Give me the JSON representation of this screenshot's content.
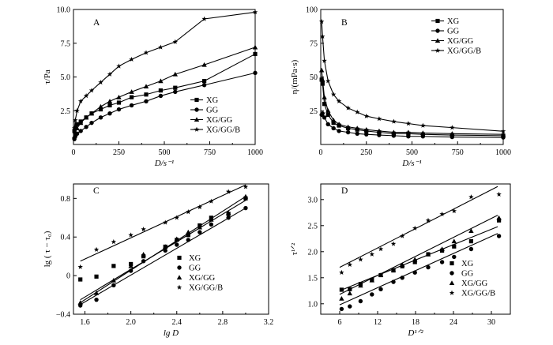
{
  "chart_data": [
    {
      "type": "line",
      "title": "A",
      "xlabel": "D/s⁻¹",
      "ylabel": "τ/Pa",
      "xlim": [
        0,
        1000
      ],
      "ylim": [
        0,
        10
      ],
      "xticks": [
        0,
        250,
        500,
        750,
        1000
      ],
      "yticks": [
        2.5,
        5.0,
        7.5,
        10.0
      ],
      "ytick_labels": [
        "2.5",
        "5.0",
        "7.5",
        "10.0"
      ],
      "legend_position": "bottom-right",
      "series": [
        {
          "name": "XG",
          "marker": "square",
          "x": [
            5,
            10,
            20,
            40,
            70,
            100,
            150,
            200,
            250,
            320,
            400,
            480,
            560,
            720,
            1000
          ],
          "y": [
            1.0,
            1.2,
            1.5,
            1.7,
            2.0,
            2.3,
            2.6,
            2.9,
            3.1,
            3.5,
            3.7,
            4.0,
            4.2,
            4.7,
            6.7
          ]
        },
        {
          "name": "GG",
          "marker": "circle",
          "x": [
            5,
            10,
            20,
            40,
            70,
            100,
            150,
            200,
            250,
            320,
            400,
            480,
            560,
            720,
            1000
          ],
          "y": [
            0.4,
            0.6,
            0.8,
            1.0,
            1.3,
            1.6,
            2.0,
            2.3,
            2.6,
            2.9,
            3.2,
            3.6,
            3.9,
            4.4,
            5.3
          ]
        },
        {
          "name": "XG/GG",
          "marker": "triangle",
          "x": [
            5,
            10,
            20,
            40,
            70,
            100,
            150,
            200,
            250,
            320,
            400,
            480,
            560,
            720,
            1000
          ],
          "y": [
            0.6,
            0.9,
            1.2,
            1.6,
            2.0,
            2.3,
            2.8,
            3.2,
            3.5,
            3.9,
            4.3,
            4.7,
            5.2,
            5.9,
            7.2
          ]
        },
        {
          "name": "XG/GG/B",
          "marker": "star",
          "x": [
            5,
            10,
            20,
            40,
            70,
            100,
            150,
            200,
            250,
            320,
            400,
            480,
            560,
            720,
            1000
          ],
          "y": [
            1.2,
            1.8,
            2.5,
            3.2,
            3.6,
            4.0,
            4.6,
            5.2,
            5.8,
            6.3,
            6.8,
            7.2,
            7.6,
            9.3,
            9.8
          ]
        }
      ]
    },
    {
      "type": "line",
      "title": "B",
      "xlabel": "D/s⁻¹",
      "ylabel": "η/(mPa·s)",
      "xlim": [
        0,
        1000
      ],
      "ylim": [
        0,
        100
      ],
      "xticks": [
        0,
        250,
        500,
        750,
        1000
      ],
      "yticks": [
        25,
        50,
        75,
        100
      ],
      "ytick_labels": [
        "25",
        "50",
        "75",
        "100"
      ],
      "legend_position": "top-right",
      "series": [
        {
          "name": "XG",
          "marker": "square",
          "x": [
            5,
            10,
            20,
            40,
            70,
            100,
            150,
            200,
            250,
            320,
            400,
            480,
            560,
            720,
            1000
          ],
          "y": [
            48,
            45,
            30,
            22,
            16,
            14,
            12,
            11,
            10,
            9,
            8,
            8,
            7.5,
            7,
            6.5
          ]
        },
        {
          "name": "GG",
          "marker": "circle",
          "x": [
            5,
            10,
            20,
            40,
            70,
            100,
            150,
            200,
            250,
            320,
            400,
            480,
            560,
            720,
            1000
          ],
          "y": [
            22,
            23,
            20,
            15,
            12,
            10,
            9,
            8,
            7.5,
            7,
            6.5,
            6,
            6,
            5.5,
            5.2
          ]
        },
        {
          "name": "XG/GG",
          "marker": "triangle",
          "x": [
            5,
            10,
            20,
            40,
            70,
            100,
            150,
            200,
            250,
            320,
            400,
            480,
            560,
            720,
            1000
          ],
          "y": [
            55,
            48,
            35,
            25,
            18,
            15,
            13,
            12,
            11,
            10,
            9,
            9,
            8.5,
            8,
            7.5
          ]
        },
        {
          "name": "XG/GG/B",
          "marker": "star",
          "x": [
            5,
            10,
            20,
            40,
            70,
            100,
            150,
            200,
            250,
            320,
            400,
            480,
            560,
            720,
            1000
          ],
          "y": [
            91,
            80,
            62,
            47,
            37,
            32,
            27,
            24,
            21,
            19,
            17,
            15.5,
            14,
            12.5,
            9.8
          ]
        }
      ]
    },
    {
      "type": "scatter",
      "title": "C",
      "xlabel": "lg D",
      "ylabel": "lg ( τ − τ₀)",
      "xlim": [
        1.5,
        3.2
      ],
      "ylim": [
        -0.4,
        0.95
      ],
      "xticks": [
        1.6,
        2.0,
        2.4,
        2.8,
        3.2
      ],
      "xtick_labels": [
        "1.6",
        "2.0",
        "2.4",
        "2.8",
        "3.2"
      ],
      "yticks": [
        -0.4,
        0.0,
        0.4,
        0.8
      ],
      "ytick_labels": [
        "−0.4",
        "0",
        "0.4",
        "0.8"
      ],
      "legend_position": "bottom-right",
      "series": [
        {
          "name": "XG",
          "marker": "square",
          "x": [
            1.56,
            1.7,
            1.85,
            2.0,
            2.11,
            2.3,
            2.4,
            2.5,
            2.6,
            2.7,
            2.85,
            3.0
          ],
          "y": [
            -0.04,
            -0.01,
            0.1,
            0.12,
            0.2,
            0.3,
            0.37,
            0.42,
            0.52,
            0.6,
            0.64,
            0.8
          ],
          "fit": [
            [
              1.56,
              -0.25
            ],
            [
              3.0,
              0.78
            ]
          ]
        },
        {
          "name": "GG",
          "marker": "circle",
          "x": [
            1.56,
            1.7,
            1.85,
            2.0,
            2.11,
            2.3,
            2.4,
            2.5,
            2.6,
            2.7,
            2.85,
            3.0
          ],
          "y": [
            -0.31,
            -0.25,
            -0.1,
            0.05,
            0.15,
            0.26,
            0.32,
            0.37,
            0.45,
            0.53,
            0.6,
            0.7
          ],
          "fit": [
            [
              1.56,
              -0.3
            ],
            [
              3.0,
              0.7
            ]
          ]
        },
        {
          "name": "XG/GG",
          "marker": "triangle",
          "x": [
            1.56,
            1.7,
            1.85,
            2.0,
            2.11,
            2.3,
            2.4,
            2.5,
            2.6,
            2.7,
            2.85,
            3.0
          ],
          "y": [
            -0.28,
            -0.18,
            -0.05,
            0.1,
            0.22,
            0.3,
            0.38,
            0.45,
            0.5,
            0.58,
            0.65,
            0.82
          ],
          "fit": [
            [
              1.56,
              -0.28
            ],
            [
              3.0,
              0.82
            ]
          ]
        },
        {
          "name": "XG/GG/B",
          "marker": "star",
          "x": [
            1.56,
            1.7,
            1.85,
            2.0,
            2.11,
            2.3,
            2.4,
            2.5,
            2.6,
            2.7,
            2.85,
            3.0
          ],
          "y": [
            0.09,
            0.27,
            0.35,
            0.42,
            0.48,
            0.55,
            0.6,
            0.66,
            0.71,
            0.77,
            0.87,
            0.92
          ],
          "fit": [
            [
              1.56,
              0.15
            ],
            [
              3.0,
              0.94
            ]
          ]
        }
      ]
    },
    {
      "type": "scatter",
      "title": "D",
      "xlabel": "D¹ᐟ²",
      "ylabel": "τ¹ᐟ²",
      "xlim": [
        3,
        33
      ],
      "ylim": [
        0.8,
        3.3
      ],
      "xticks": [
        6,
        12,
        18,
        24,
        30
      ],
      "yticks": [
        1.0,
        1.5,
        2.0,
        2.5,
        3.0
      ],
      "ytick_labels": [
        "1.0",
        "1.5",
        "2.0",
        "2.5",
        "3.0"
      ],
      "legend_position": "bottom-right",
      "series": [
        {
          "name": "XG",
          "marker": "square",
          "x": [
            6.3,
            7.6,
            9.3,
            11.1,
            12.5,
            14.5,
            15.9,
            17.9,
            20.0,
            22.2,
            24.1,
            26.8,
            31.2
          ],
          "y": [
            1.27,
            1.28,
            1.38,
            1.46,
            1.55,
            1.64,
            1.72,
            1.8,
            1.95,
            2.02,
            2.1,
            2.2,
            2.6
          ],
          "fit": [
            [
              6,
              1.25
            ],
            [
              31,
              2.48
            ]
          ]
        },
        {
          "name": "GG",
          "marker": "circle",
          "x": [
            6.3,
            7.6,
            9.3,
            11.1,
            12.5,
            14.5,
            15.9,
            17.9,
            20.0,
            22.2,
            24.1,
            26.8,
            31.2
          ],
          "y": [
            0.9,
            0.95,
            1.05,
            1.18,
            1.28,
            1.42,
            1.5,
            1.6,
            1.7,
            1.8,
            1.9,
            2.05,
            2.3
          ],
          "fit": [
            [
              6,
              0.98
            ],
            [
              31,
              2.35
            ]
          ]
        },
        {
          "name": "XG/GG",
          "marker": "triangle",
          "x": [
            6.3,
            7.6,
            9.3,
            11.1,
            12.5,
            14.5,
            15.9,
            17.9,
            20.0,
            22.2,
            24.1,
            26.8,
            31.2
          ],
          "y": [
            1.1,
            1.2,
            1.35,
            1.45,
            1.55,
            1.65,
            1.75,
            1.85,
            1.95,
            2.05,
            2.2,
            2.4,
            2.65
          ],
          "fit": [
            [
              6,
              1.18
            ],
            [
              31,
              2.7
            ]
          ]
        },
        {
          "name": "XG/GG/B",
          "marker": "star",
          "x": [
            6.3,
            7.6,
            9.3,
            11.1,
            12.5,
            14.5,
            15.9,
            17.9,
            20.0,
            22.2,
            24.1,
            26.8,
            31.2
          ],
          "y": [
            1.6,
            1.75,
            1.85,
            1.95,
            2.05,
            2.15,
            2.3,
            2.45,
            2.6,
            2.72,
            2.78,
            3.05,
            3.1
          ],
          "fit": [
            [
              6,
              1.7
            ],
            [
              31,
              3.25
            ]
          ]
        }
      ]
    }
  ]
}
